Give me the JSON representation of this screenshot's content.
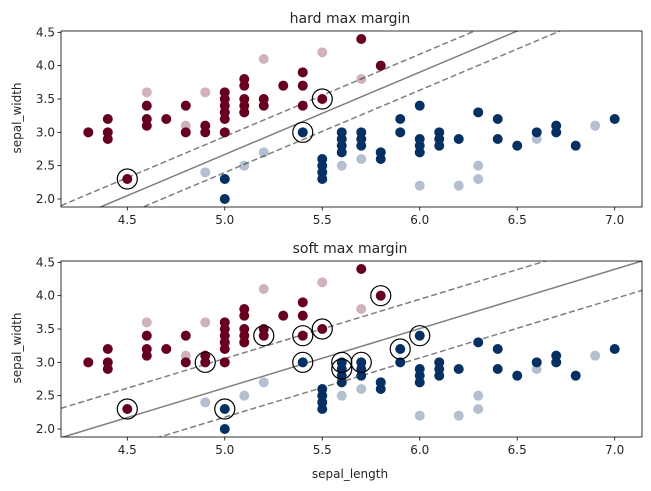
{
  "colors": {
    "class_a": "#67001f",
    "class_b": "#053061",
    "boundary": "#7f7f7f",
    "support_vector_ring": "#000000"
  },
  "chart_data": [
    {
      "type": "scatter",
      "title": "hard max margin",
      "xlabel": "",
      "ylabel": "sepal_width",
      "xlim": [
        4.16,
        7.14
      ],
      "ylim": [
        1.88,
        4.52
      ],
      "xticks": [
        "4.5",
        "5.0",
        "5.5",
        "6.0",
        "6.5",
        "7.0"
      ],
      "yticks": [
        "2.0",
        "2.5",
        "3.0",
        "3.5",
        "4.0",
        "4.5"
      ],
      "grid": false,
      "boundary": {
        "style": "solid",
        "points": [
          [
            4.16,
            1.63
          ],
          [
            7.14,
            5.31
          ]
        ]
      },
      "margins": [
        {
          "style": "dashed",
          "points": [
            [
              4.16,
              1.9
            ],
            [
              7.14,
              5.58
            ]
          ]
        },
        {
          "style": "dashed",
          "points": [
            [
              4.16,
              1.36
            ],
            [
              7.14,
              5.04
            ]
          ]
        }
      ],
      "series": [
        {
          "class": "a",
          "opacity": "full",
          "points": [
            [
              4.3,
              3.0
            ],
            [
              4.4,
              2.9
            ],
            [
              4.4,
              3.0
            ],
            [
              4.4,
              3.2
            ],
            [
              4.5,
              2.3
            ],
            [
              4.6,
              3.1
            ],
            [
              4.6,
              3.2
            ],
            [
              4.6,
              3.4
            ],
            [
              4.7,
              3.2
            ],
            [
              4.8,
              3.0
            ],
            [
              4.8,
              3.4
            ],
            [
              4.9,
              3.0
            ],
            [
              4.9,
              3.1
            ],
            [
              5.0,
              3.0
            ],
            [
              5.0,
              3.2
            ],
            [
              5.0,
              3.3
            ],
            [
              5.0,
              3.4
            ],
            [
              5.0,
              3.5
            ],
            [
              5.0,
              3.6
            ],
            [
              5.1,
              3.3
            ],
            [
              5.1,
              3.4
            ],
            [
              5.1,
              3.5
            ],
            [
              5.1,
              3.7
            ],
            [
              5.1,
              3.8
            ],
            [
              5.2,
              3.4
            ],
            [
              5.2,
              3.5
            ],
            [
              5.3,
              3.7
            ],
            [
              5.4,
              3.4
            ],
            [
              5.4,
              3.7
            ],
            [
              5.4,
              3.9
            ],
            [
              5.5,
              3.5
            ],
            [
              5.7,
              4.4
            ],
            [
              5.8,
              4.0
            ]
          ]
        },
        {
          "class": "b",
          "opacity": "full",
          "points": [
            [
              5.0,
              2.0
            ],
            [
              5.0,
              2.3
            ],
            [
              5.4,
              3.0
            ],
            [
              5.5,
              2.3
            ],
            [
              5.5,
              2.4
            ],
            [
              5.5,
              2.5
            ],
            [
              5.5,
              2.6
            ],
            [
              5.6,
              2.7
            ],
            [
              5.6,
              2.8
            ],
            [
              5.6,
              2.9
            ],
            [
              5.6,
              3.0
            ],
            [
              5.7,
              2.8
            ],
            [
              5.7,
              2.9
            ],
            [
              5.7,
              3.0
            ],
            [
              5.8,
              2.6
            ],
            [
              5.8,
              2.7
            ],
            [
              5.9,
              3.0
            ],
            [
              5.9,
              3.2
            ],
            [
              6.0,
              2.7
            ],
            [
              6.0,
              2.8
            ],
            [
              6.0,
              2.9
            ],
            [
              6.0,
              3.4
            ],
            [
              6.1,
              2.8
            ],
            [
              6.1,
              2.9
            ],
            [
              6.1,
              3.0
            ],
            [
              6.2,
              2.9
            ],
            [
              6.3,
              3.3
            ],
            [
              6.4,
              2.9
            ],
            [
              6.4,
              3.2
            ],
            [
              6.5,
              2.8
            ],
            [
              6.6,
              3.0
            ],
            [
              6.7,
              3.0
            ],
            [
              6.7,
              3.1
            ],
            [
              6.8,
              2.8
            ],
            [
              7.0,
              3.2
            ]
          ]
        },
        {
          "class": "a",
          "opacity": "faded",
          "points": [
            [
              4.6,
              3.6
            ],
            [
              4.8,
              3.1
            ],
            [
              4.9,
              3.6
            ],
            [
              5.0,
              3.0
            ],
            [
              5.1,
              3.3
            ],
            [
              5.2,
              4.1
            ],
            [
              5.5,
              4.2
            ],
            [
              5.7,
              3.8
            ]
          ]
        },
        {
          "class": "b",
          "opacity": "faded",
          "points": [
            [
              4.9,
              2.4
            ],
            [
              5.1,
              2.5
            ],
            [
              5.2,
              2.7
            ],
            [
              5.6,
              2.5
            ],
            [
              5.7,
              2.6
            ],
            [
              5.8,
              2.7
            ],
            [
              6.0,
              2.2
            ],
            [
              6.2,
              2.2
            ],
            [
              6.3,
              2.3
            ],
            [
              6.3,
              2.5
            ],
            [
              6.6,
              2.9
            ],
            [
              6.9,
              3.1
            ]
          ]
        }
      ],
      "support_vectors": [
        [
          4.5,
          2.3
        ],
        [
          5.4,
          3.0
        ],
        [
          5.5,
          3.5
        ]
      ]
    },
    {
      "type": "scatter",
      "title": "soft max margin",
      "xlabel": "sepal_length",
      "ylabel": "sepal_width",
      "xlim": [
        4.16,
        7.14
      ],
      "ylim": [
        1.88,
        4.52
      ],
      "xticks": [
        "4.5",
        "5.0",
        "5.5",
        "6.0",
        "6.5",
        "7.0"
      ],
      "yticks": [
        "2.0",
        "2.5",
        "3.0",
        "3.5",
        "4.0",
        "4.5"
      ],
      "grid": false,
      "boundary": {
        "style": "solid",
        "points": [
          [
            4.16,
            1.87
          ],
          [
            7.14,
            4.52
          ]
        ]
      },
      "margins": [
        {
          "style": "dashed",
          "points": [
            [
              4.16,
              2.31
            ],
            [
              7.14,
              4.96
            ]
          ]
        },
        {
          "style": "dashed",
          "points": [
            [
              4.16,
              1.43
            ],
            [
              7.14,
              4.08
            ]
          ]
        }
      ],
      "series": [
        {
          "class": "a",
          "opacity": "full",
          "points": [
            [
              4.3,
              3.0
            ],
            [
              4.4,
              2.9
            ],
            [
              4.4,
              3.0
            ],
            [
              4.4,
              3.2
            ],
            [
              4.5,
              2.3
            ],
            [
              4.6,
              3.1
            ],
            [
              4.6,
              3.2
            ],
            [
              4.6,
              3.4
            ],
            [
              4.7,
              3.2
            ],
            [
              4.8,
              3.0
            ],
            [
              4.8,
              3.4
            ],
            [
              4.9,
              3.0
            ],
            [
              4.9,
              3.1
            ],
            [
              5.0,
              3.0
            ],
            [
              5.0,
              3.2
            ],
            [
              5.0,
              3.3
            ],
            [
              5.0,
              3.4
            ],
            [
              5.0,
              3.5
            ],
            [
              5.0,
              3.6
            ],
            [
              5.1,
              3.3
            ],
            [
              5.1,
              3.4
            ],
            [
              5.1,
              3.5
            ],
            [
              5.1,
              3.7
            ],
            [
              5.1,
              3.8
            ],
            [
              5.2,
              3.4
            ],
            [
              5.2,
              3.5
            ],
            [
              5.3,
              3.7
            ],
            [
              5.4,
              3.4
            ],
            [
              5.4,
              3.7
            ],
            [
              5.4,
              3.9
            ],
            [
              5.5,
              3.5
            ],
            [
              5.7,
              4.4
            ],
            [
              5.8,
              4.0
            ]
          ]
        },
        {
          "class": "b",
          "opacity": "full",
          "points": [
            [
              5.0,
              2.0
            ],
            [
              5.0,
              2.3
            ],
            [
              5.4,
              3.0
            ],
            [
              5.5,
              2.3
            ],
            [
              5.5,
              2.4
            ],
            [
              5.5,
              2.5
            ],
            [
              5.5,
              2.6
            ],
            [
              5.6,
              2.7
            ],
            [
              5.6,
              2.8
            ],
            [
              5.6,
              2.9
            ],
            [
              5.6,
              3.0
            ],
            [
              5.7,
              2.8
            ],
            [
              5.7,
              2.9
            ],
            [
              5.7,
              3.0
            ],
            [
              5.8,
              2.6
            ],
            [
              5.8,
              2.7
            ],
            [
              5.9,
              3.0
            ],
            [
              5.9,
              3.2
            ],
            [
              6.0,
              2.7
            ],
            [
              6.0,
              2.8
            ],
            [
              6.0,
              2.9
            ],
            [
              6.0,
              3.4
            ],
            [
              6.1,
              2.8
            ],
            [
              6.1,
              2.9
            ],
            [
              6.1,
              3.0
            ],
            [
              6.2,
              2.9
            ],
            [
              6.3,
              3.3
            ],
            [
              6.4,
              2.9
            ],
            [
              6.4,
              3.2
            ],
            [
              6.5,
              2.8
            ],
            [
              6.6,
              3.0
            ],
            [
              6.7,
              3.0
            ],
            [
              6.7,
              3.1
            ],
            [
              6.8,
              2.8
            ],
            [
              7.0,
              3.2
            ]
          ]
        },
        {
          "class": "a",
          "opacity": "faded",
          "points": [
            [
              4.6,
              3.6
            ],
            [
              4.8,
              3.1
            ],
            [
              4.9,
              3.6
            ],
            [
              5.0,
              3.0
            ],
            [
              5.1,
              3.3
            ],
            [
              5.2,
              4.1
            ],
            [
              5.5,
              4.2
            ],
            [
              5.7,
              3.8
            ]
          ]
        },
        {
          "class": "b",
          "opacity": "faded",
          "points": [
            [
              4.9,
              2.4
            ],
            [
              5.1,
              2.5
            ],
            [
              5.2,
              2.7
            ],
            [
              5.6,
              2.5
            ],
            [
              5.7,
              2.6
            ],
            [
              5.8,
              2.7
            ],
            [
              6.0,
              2.2
            ],
            [
              6.2,
              2.2
            ],
            [
              6.3,
              2.3
            ],
            [
              6.3,
              2.5
            ],
            [
              6.6,
              2.9
            ],
            [
              6.9,
              3.1
            ]
          ]
        }
      ],
      "support_vectors": [
        [
          4.5,
          2.3
        ],
        [
          4.9,
          3.0
        ],
        [
          5.0,
          2.3
        ],
        [
          5.2,
          3.4
        ],
        [
          5.4,
          3.4
        ],
        [
          5.4,
          3.0
        ],
        [
          5.5,
          3.5
        ],
        [
          5.6,
          2.9
        ],
        [
          5.6,
          3.0
        ],
        [
          5.7,
          3.0
        ],
        [
          5.8,
          4.0
        ],
        [
          5.9,
          3.2
        ],
        [
          6.0,
          3.4
        ]
      ]
    }
  ]
}
